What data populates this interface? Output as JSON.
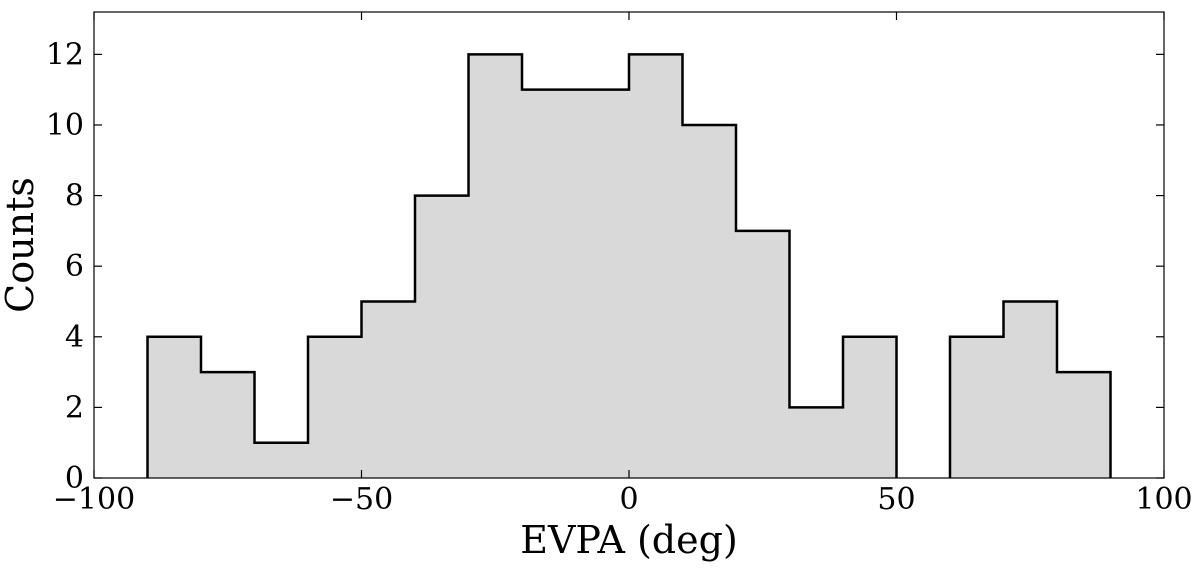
{
  "chart_data": {
    "type": "histogram",
    "xlabel": "EVPA (deg)",
    "ylabel": "Counts",
    "xlim": [
      -100,
      100
    ],
    "ylim": [
      0,
      13.2
    ],
    "x_ticks": [
      -100,
      -50,
      0,
      50,
      100
    ],
    "x_tick_labels": [
      "−100",
      "−50",
      "0",
      "50",
      "100"
    ],
    "y_ticks": [
      0,
      2,
      4,
      6,
      8,
      10,
      12
    ],
    "y_tick_labels": [
      "0",
      "2",
      "4",
      "6",
      "8",
      "10",
      "12"
    ],
    "bin_edges": [
      -90,
      -80,
      -70,
      -60,
      -50,
      -40,
      -30,
      -20,
      -10,
      0,
      10,
      20,
      30,
      40,
      50,
      60,
      70,
      80,
      90
    ],
    "counts": [
      4,
      3,
      1,
      4,
      5,
      8,
      12,
      11,
      11,
      12,
      10,
      7,
      2,
      4,
      0,
      4,
      5,
      3
    ],
    "fill_color": "#d9d9d9",
    "edge_color": "#000000",
    "grid": false
  }
}
